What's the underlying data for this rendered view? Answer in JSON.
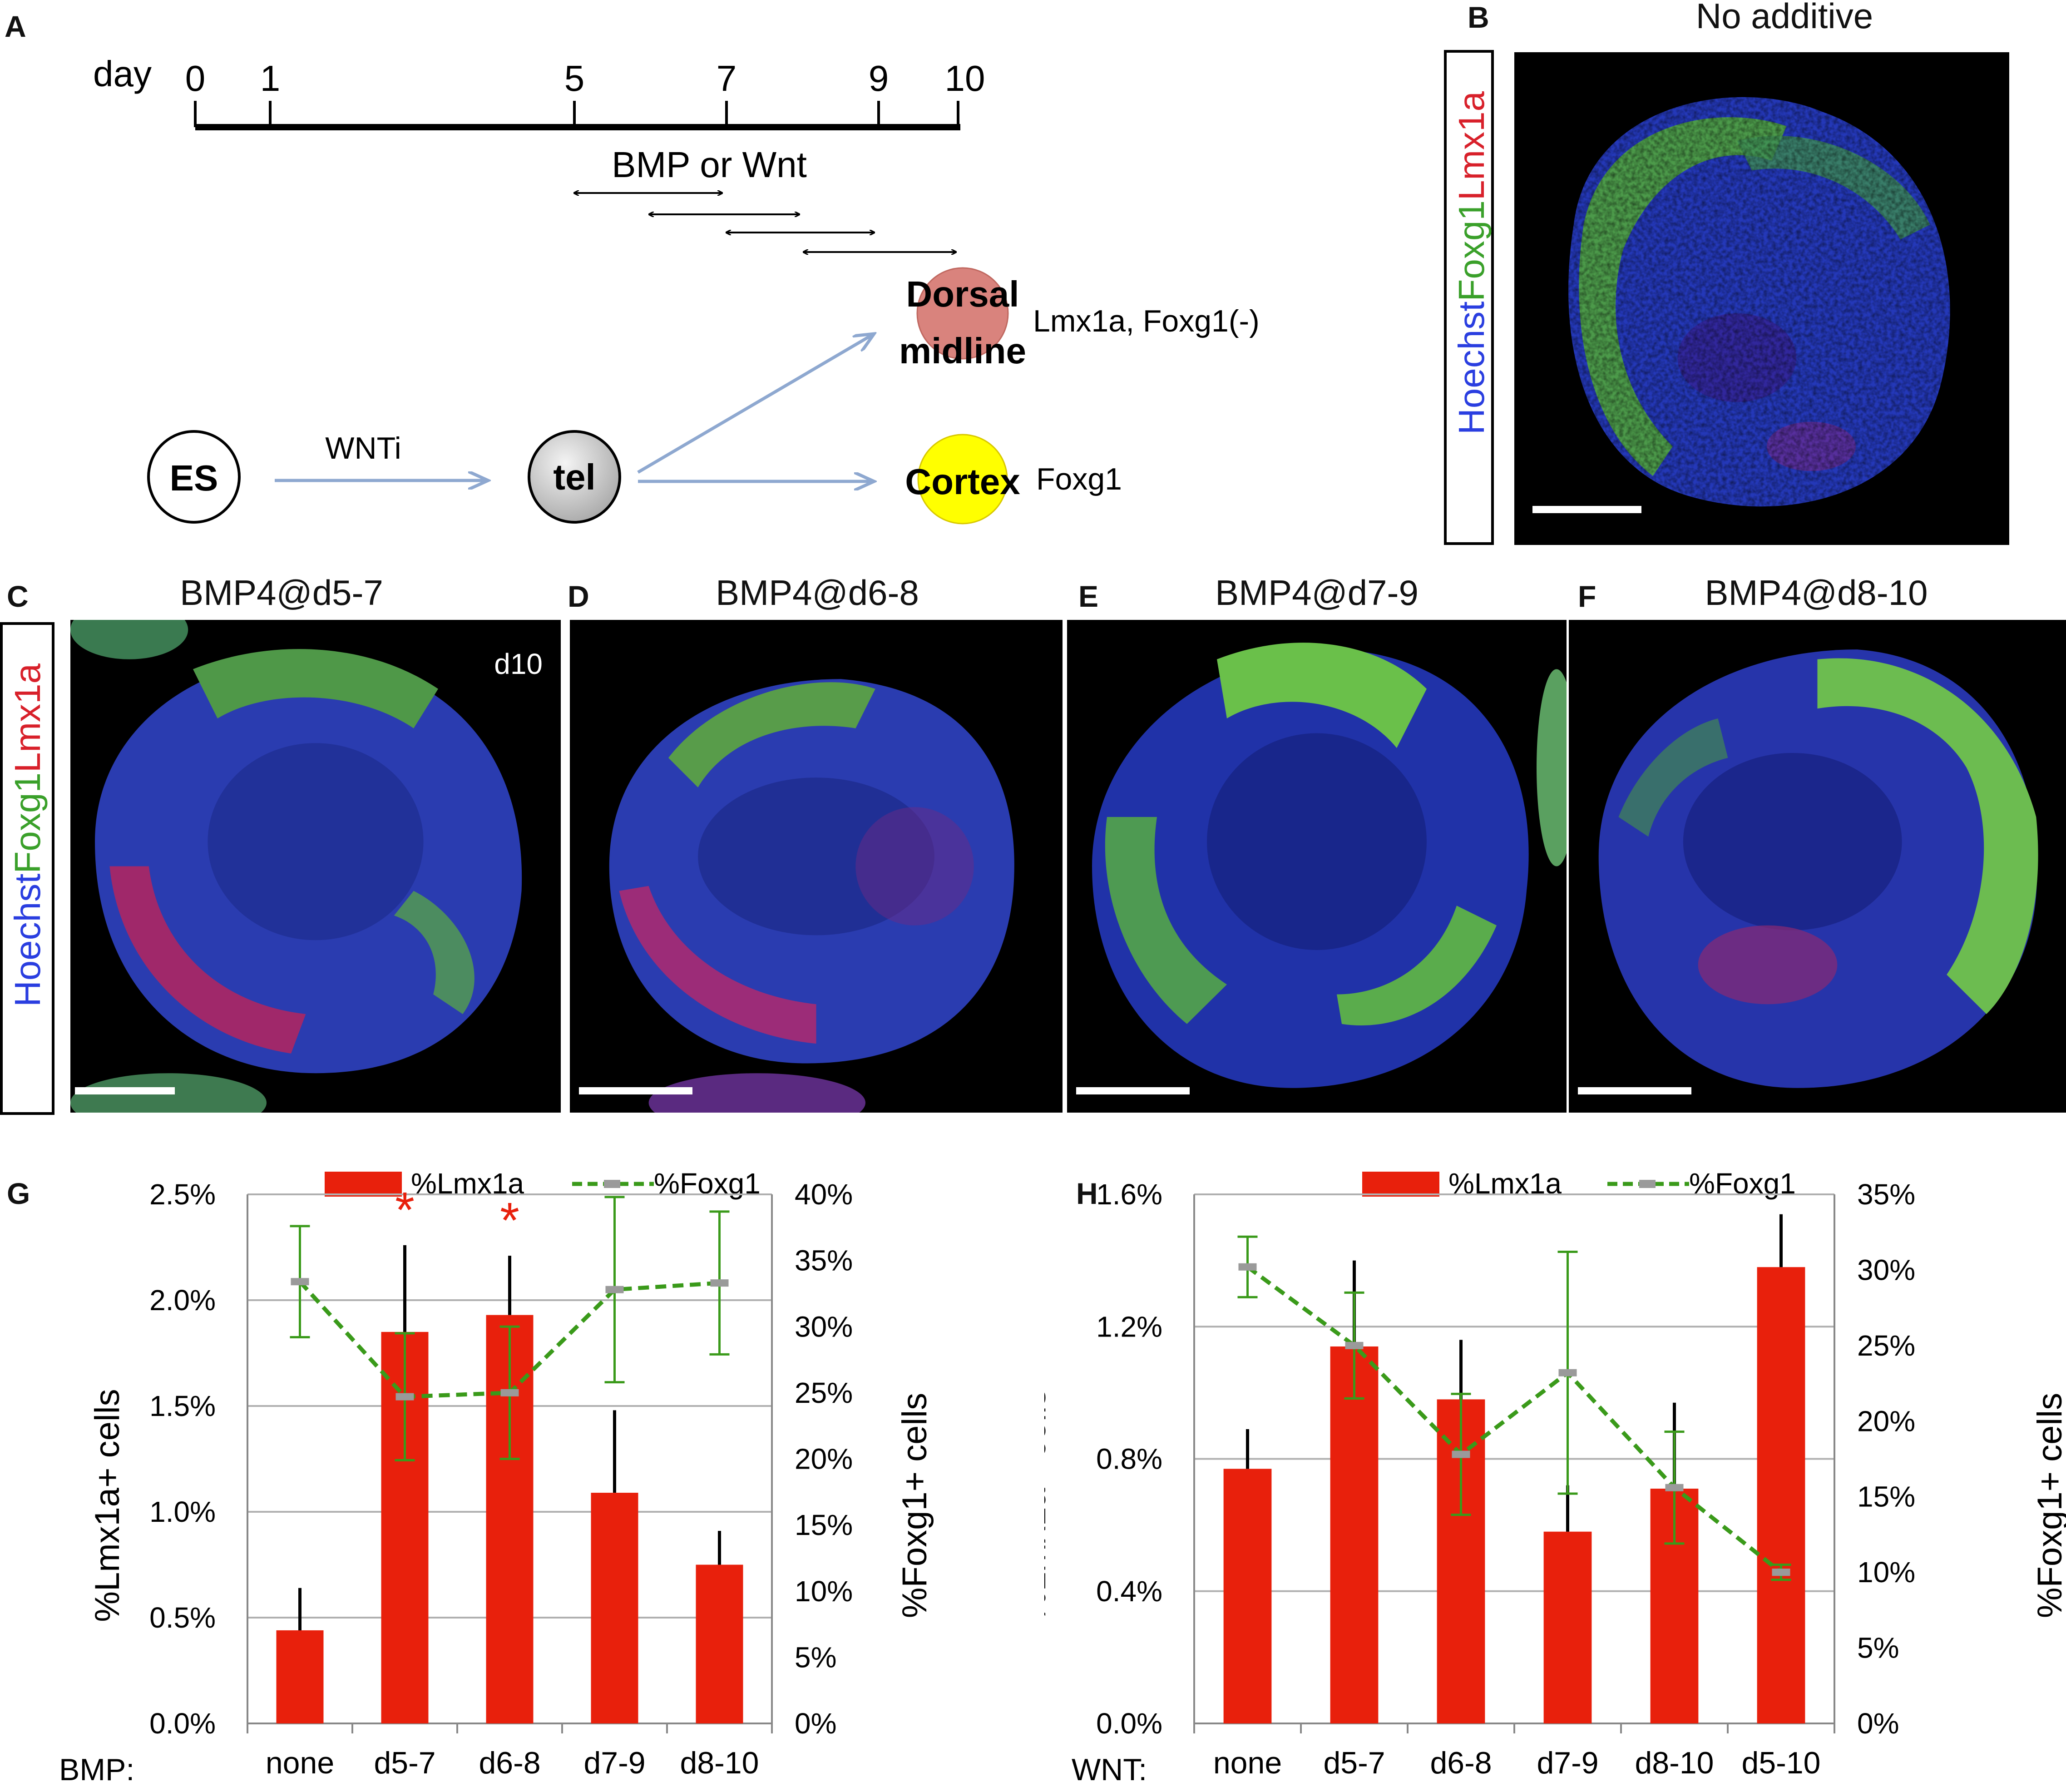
{
  "panel_labels": [
    "A",
    "B",
    "C",
    "D",
    "E",
    "F",
    "G",
    "H"
  ],
  "schematic": {
    "day_label": "day",
    "days": [
      "0",
      "1",
      "5",
      "7",
      "9",
      "10"
    ],
    "bmp_label": "BMP or Wnt",
    "nodes": {
      "es": "ES",
      "tel": "tel",
      "dorsal_line1": "Dorsal",
      "dorsal_line2": "midline",
      "cortex": "Cortex"
    },
    "wnti_label": "WNTi",
    "dorsal_markers": "Lmx1a, Foxg1(-)",
    "cortex_markers": "Foxg1"
  },
  "stain_labels": {
    "hoechst": "Hoechst",
    "foxg1": "Foxg1",
    "lmx1a": "Lmx1a"
  },
  "image_panels": {
    "b_title": "No additive",
    "c_title": "BMP4@d5-7",
    "d_title": "BMP4@d6-8",
    "e_title": "BMP4@d7-9",
    "f_title": "BMP4@d8-10",
    "c_day_tag": "d10"
  },
  "colors": {
    "bar": "#e8200c",
    "foxg1_line": "#3a9a1a",
    "grid": "#b0b0b0",
    "asterisk": "#e8200c",
    "hoechst": "#2a3ee0",
    "foxg1": "#4fc63a",
    "lmx1a": "#e8203a"
  },
  "chart_data": [
    {
      "type": "bar",
      "panel": "G",
      "legend": [
        "%Lmx1a",
        "%Foxg1"
      ],
      "xprefix": "BMP:",
      "categories": [
        "none",
        "d5-7",
        "d6-8",
        "d7-9",
        "d8-10"
      ],
      "ylabel": "%Lmx1a+ cells",
      "y2label": "%Foxg1+ cells",
      "ylim": [
        0,
        2.5
      ],
      "y2lim": [
        0,
        40
      ],
      "yticks": [
        "0.0%",
        "0.5%",
        "1.0%",
        "1.5%",
        "2.0%",
        "2.5%"
      ],
      "y2ticks": [
        "0%",
        "5%",
        "10%",
        "15%",
        "20%",
        "25%",
        "30%",
        "35%",
        "40%"
      ],
      "series": [
        {
          "name": "%Lmx1a",
          "kind": "bar",
          "values": [
            0.44,
            1.85,
            1.93,
            1.09,
            0.75
          ],
          "err": [
            0.2,
            0.41,
            0.28,
            0.39,
            0.16
          ]
        },
        {
          "name": "%Foxg1",
          "kind": "line",
          "axis": "right",
          "values": [
            33.4,
            24.7,
            25.0,
            32.8,
            33.3
          ],
          "err": [
            4.2,
            4.8,
            5.0,
            7.0,
            5.4
          ]
        }
      ],
      "significance": [
        "",
        "*",
        "*",
        "",
        ""
      ]
    },
    {
      "type": "bar",
      "panel": "H",
      "legend": [
        "%Lmx1a",
        "%Foxg1"
      ],
      "xprefix": "WNT:",
      "categories": [
        "none",
        "d5-7",
        "d6-8",
        "d7-9",
        "d8-10",
        "d5-10"
      ],
      "ylabel": "%Lmx1a+ cells",
      "y2label": "%Foxg1+ cells",
      "ylim": [
        0,
        1.6
      ],
      "y2lim": [
        0,
        35
      ],
      "yticks": [
        "0.0%",
        "0.4%",
        "0.8%",
        "1.2%",
        "1.6%"
      ],
      "y2ticks": [
        "0%",
        "5%",
        "10%",
        "15%",
        "20%",
        "25%",
        "30%",
        "35%"
      ],
      "series": [
        {
          "name": "%Lmx1a",
          "kind": "bar",
          "values": [
            0.77,
            1.14,
            0.98,
            0.58,
            0.71,
            1.38
          ],
          "err": [
            0.12,
            0.26,
            0.18,
            0.14,
            0.26,
            0.16
          ]
        },
        {
          "name": "%Foxg1",
          "kind": "line",
          "axis": "right",
          "values": [
            30.2,
            25.0,
            17.8,
            23.2,
            15.6,
            10.0
          ],
          "err": [
            2.0,
            3.5,
            4.0,
            8.0,
            3.7,
            0.5
          ]
        }
      ],
      "significance": [
        "",
        "",
        "",
        "",
        "",
        ""
      ]
    }
  ]
}
